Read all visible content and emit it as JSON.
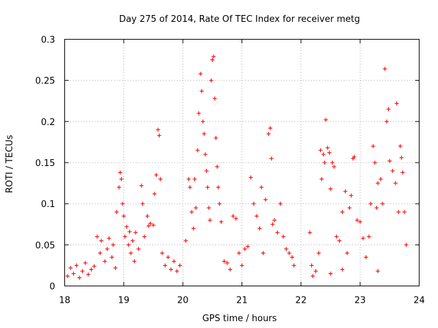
{
  "chart_data": {
    "type": "scatter",
    "title": "Day 275 of 2014, Rate Of TEC Index for receiver metg",
    "xlabel": "GPS time / hours",
    "ylabel": "ROTI / TECUs",
    "xlim": [
      18,
      24
    ],
    "ylim": [
      0,
      0.3
    ],
    "xticks": [
      18,
      19,
      20,
      21,
      22,
      23,
      24
    ],
    "yticks": [
      0,
      0.05,
      0.1,
      0.15,
      0.2,
      0.25,
      0.3
    ],
    "ytick_labels": [
      "0",
      "0.05",
      "0.1",
      "0.15",
      "0.2",
      "0.25",
      "0.3"
    ],
    "grid": true,
    "marker": "+",
    "series": [
      {
        "name": "ROTI",
        "color": "#ff0000",
        "points": [
          [
            18.05,
            0.012
          ],
          [
            18.1,
            0.022
          ],
          [
            18.15,
            0.015
          ],
          [
            18.2,
            0.025
          ],
          [
            18.25,
            0.01
          ],
          [
            18.3,
            0.018
          ],
          [
            18.35,
            0.028
          ],
          [
            18.4,
            0.014
          ],
          [
            18.45,
            0.02
          ],
          [
            18.5,
            0.024
          ],
          [
            18.55,
            0.06
          ],
          [
            18.6,
            0.04
          ],
          [
            18.62,
            0.055
          ],
          [
            18.68,
            0.03
          ],
          [
            18.72,
            0.045
          ],
          [
            18.75,
            0.058
          ],
          [
            18.8,
            0.035
          ],
          [
            18.82,
            0.05
          ],
          [
            18.86,
            0.022
          ],
          [
            18.88,
            0.09
          ],
          [
            18.92,
            0.12
          ],
          [
            18.94,
            0.138
          ],
          [
            18.96,
            0.13
          ],
          [
            18.98,
            0.1
          ],
          [
            19.0,
            0.085
          ],
          [
            19.02,
            0.06
          ],
          [
            19.05,
            0.072
          ],
          [
            19.08,
            0.05
          ],
          [
            19.1,
            0.066
          ],
          [
            19.12,
            0.04
          ],
          [
            19.15,
            0.055
          ],
          [
            19.18,
            0.03
          ],
          [
            19.2,
            0.065
          ],
          [
            19.25,
            0.045
          ],
          [
            19.3,
            0.122
          ],
          [
            19.32,
            0.1
          ],
          [
            19.35,
            0.06
          ],
          [
            19.4,
            0.085
          ],
          [
            19.42,
            0.073
          ],
          [
            19.45,
            0.076
          ],
          [
            19.5,
            0.074
          ],
          [
            19.52,
            0.112
          ],
          [
            19.55,
            0.135
          ],
          [
            19.58,
            0.19
          ],
          [
            19.6,
            0.183
          ],
          [
            19.62,
            0.13
          ],
          [
            19.65,
            0.04
          ],
          [
            19.7,
            0.025
          ],
          [
            19.75,
            0.035
          ],
          [
            19.8,
            0.02
          ],
          [
            19.85,
            0.03
          ],
          [
            19.9,
            0.018
          ],
          [
            19.95,
            0.025
          ],
          [
            20.05,
            0.055
          ],
          [
            20.1,
            0.13
          ],
          [
            20.12,
            0.12
          ],
          [
            20.15,
            0.09
          ],
          [
            20.18,
            0.07
          ],
          [
            20.2,
            0.13
          ],
          [
            20.22,
            0.095
          ],
          [
            20.25,
            0.165
          ],
          [
            20.27,
            0.21
          ],
          [
            20.3,
            0.258
          ],
          [
            20.32,
            0.237
          ],
          [
            20.34,
            0.2
          ],
          [
            20.36,
            0.185
          ],
          [
            20.38,
            0.16
          ],
          [
            20.4,
            0.14
          ],
          [
            20.42,
            0.12
          ],
          [
            20.44,
            0.095
          ],
          [
            20.46,
            0.08
          ],
          [
            20.48,
            0.25
          ],
          [
            20.5,
            0.275
          ],
          [
            20.52,
            0.279
          ],
          [
            20.54,
            0.228
          ],
          [
            20.56,
            0.18
          ],
          [
            20.58,
            0.145
          ],
          [
            20.6,
            0.12
          ],
          [
            20.62,
            0.1
          ],
          [
            20.65,
            0.078
          ],
          [
            20.7,
            0.03
          ],
          [
            20.75,
            0.028
          ],
          [
            20.8,
            0.02
          ],
          [
            20.85,
            0.085
          ],
          [
            20.9,
            0.082
          ],
          [
            20.95,
            0.04
          ],
          [
            21.0,
            0.025
          ],
          [
            21.05,
            0.045
          ],
          [
            21.1,
            0.048
          ],
          [
            21.15,
            0.132
          ],
          [
            21.2,
            0.1
          ],
          [
            21.25,
            0.085
          ],
          [
            21.3,
            0.07
          ],
          [
            21.33,
            0.12
          ],
          [
            21.36,
            0.04
          ],
          [
            21.4,
            0.105
          ],
          [
            21.45,
            0.185
          ],
          [
            21.48,
            0.192
          ],
          [
            21.5,
            0.155
          ],
          [
            21.52,
            0.075
          ],
          [
            21.55,
            0.08
          ],
          [
            21.6,
            0.065
          ],
          [
            21.65,
            0.1
          ],
          [
            21.7,
            0.06
          ],
          [
            21.75,
            0.045
          ],
          [
            21.8,
            0.04
          ],
          [
            21.85,
            0.035
          ],
          [
            21.88,
            0.025
          ],
          [
            22.15,
            0.065
          ],
          [
            22.18,
            0.025
          ],
          [
            22.3,
            0.04
          ],
          [
            22.33,
            0.165
          ],
          [
            22.35,
            0.13
          ],
          [
            22.38,
            0.16
          ],
          [
            22.4,
            0.15
          ],
          [
            22.42,
            0.202
          ],
          [
            22.45,
            0.168
          ],
          [
            22.48,
            0.162
          ],
          [
            22.5,
            0.118
          ],
          [
            22.53,
            0.15
          ],
          [
            22.56,
            0.145
          ],
          [
            22.6,
            0.06
          ],
          [
            22.65,
            0.055
          ],
          [
            22.7,
            0.09
          ],
          [
            22.75,
            0.115
          ],
          [
            22.78,
            0.04
          ],
          [
            22.82,
            0.095
          ],
          [
            22.85,
            0.11
          ],
          [
            22.88,
            0.155
          ],
          [
            22.9,
            0.157
          ],
          [
            22.95,
            0.08
          ],
          [
            23.0,
            0.078
          ],
          [
            23.05,
            0.058
          ],
          [
            23.1,
            0.035
          ],
          [
            23.15,
            0.06
          ],
          [
            23.18,
            0.1
          ],
          [
            23.22,
            0.17
          ],
          [
            23.25,
            0.15
          ],
          [
            23.28,
            0.095
          ],
          [
            23.3,
            0.125
          ],
          [
            23.35,
            0.13
          ],
          [
            23.38,
            0.1
          ],
          [
            23.42,
            0.264
          ],
          [
            23.45,
            0.2
          ],
          [
            23.48,
            0.215
          ],
          [
            23.5,
            0.152
          ],
          [
            23.55,
            0.14
          ],
          [
            23.6,
            0.125
          ],
          [
            23.62,
            0.222
          ],
          [
            23.65,
            0.09
          ],
          [
            23.68,
            0.17
          ],
          [
            23.7,
            0.156
          ],
          [
            23.72,
            0.138
          ],
          [
            23.75,
            0.09
          ],
          [
            23.78,
            0.05
          ],
          [
            22.2,
            0.012
          ],
          [
            22.25,
            0.018
          ],
          [
            22.5,
            0.015
          ],
          [
            22.7,
            0.02
          ],
          [
            23.3,
            0.018
          ]
        ]
      }
    ]
  }
}
